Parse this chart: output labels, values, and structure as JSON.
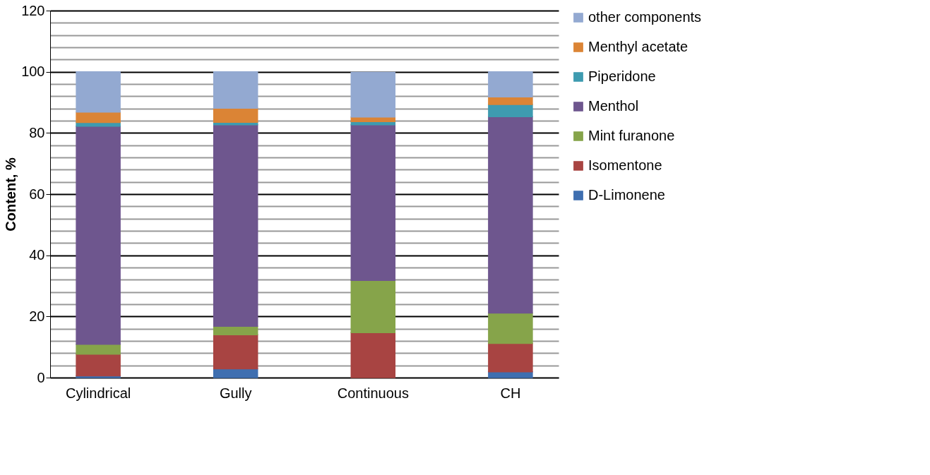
{
  "chart_data": {
    "type": "bar",
    "stacked": true,
    "ylabel": "Content, %",
    "categories": [
      "Cylindrical",
      "Gully",
      "Continuous",
      "CH"
    ],
    "series": [
      {
        "name": "D-Limonene",
        "color": "#3f6fb0",
        "values": [
          0.6,
          2.9,
          null,
          1.9
        ]
      },
      {
        "name": "Isomentone",
        "color": "#a84442",
        "values": [
          7.1,
          11.1,
          14.7,
          9.3
        ]
      },
      {
        "name": "Mint furanone",
        "color": "#86a44a",
        "values": [
          3.2,
          2.8,
          17.1,
          9.9
        ]
      },
      {
        "name": "Menthol",
        "color": "#6e568e",
        "values": [
          71.3,
          65.9,
          50.9,
          64.2
        ]
      },
      {
        "name": "Piperidone",
        "color": "#3e9bb0",
        "values": [
          1.2,
          0.8,
          1.0,
          4.0
        ]
      },
      {
        "name": "Menthyl acetate",
        "color": "#db8435",
        "values": [
          3.4,
          4.6,
          1.5,
          2.5
        ]
      },
      {
        "name": "other components",
        "color": "#93a9d1",
        "values": [
          13.2,
          11.9,
          14.6,
          8.2
        ]
      }
    ],
    "ylim": [
      0,
      120
    ],
    "yticks": [
      0,
      {
        "value": 4,
        "label": null
      },
      {
        "value": 8,
        "label": null
      },
      {
        "value": 12,
        "label": null
      },
      {
        "value": 16,
        "label": null
      },
      20,
      {
        "value": 24,
        "label": null
      },
      {
        "value": 28,
        "label": null
      },
      {
        "value": 32,
        "label": null
      },
      {
        "value": 36,
        "label": null
      },
      40,
      {
        "value": 44,
        "label": null
      },
      {
        "value": 48,
        "label": null
      },
      {
        "value": 52,
        "label": null
      },
      {
        "value": 56,
        "label": null
      },
      60,
      {
        "value": 64,
        "label": null
      },
      {
        "value": 68,
        "label": null
      },
      {
        "value": 72,
        "label": null
      },
      {
        "value": 76,
        "label": null
      },
      80,
      {
        "value": 84,
        "label": null
      },
      {
        "value": 88,
        "label": null
      },
      {
        "value": 92,
        "label": null
      },
      {
        "value": 96,
        "label": null
      },
      100,
      {
        "value": 104,
        "label": null
      },
      {
        "value": 108,
        "label": null
      },
      {
        "value": 112,
        "label": null
      },
      {
        "value": 116,
        "label": null
      },
      120
    ],
    "grid": true,
    "legend": "right"
  }
}
